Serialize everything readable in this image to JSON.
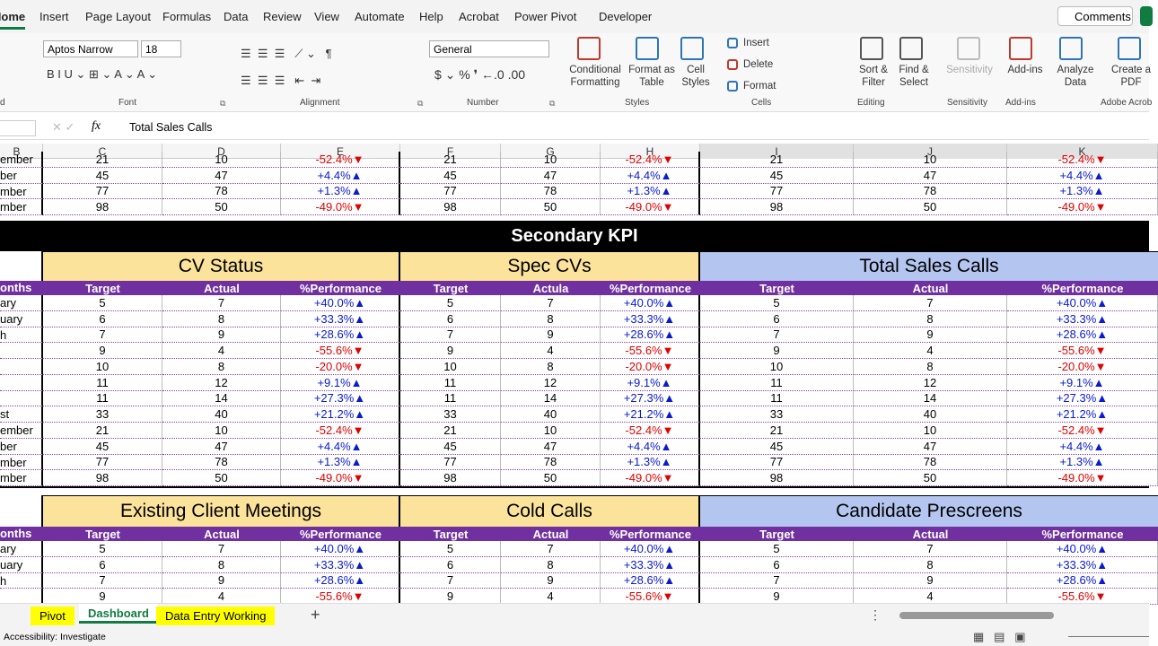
{
  "menu": {
    "tabs": [
      "Home",
      "Insert",
      "Page Layout",
      "Formulas",
      "Data",
      "Review",
      "View",
      "Automate",
      "Help",
      "Acrobat",
      "Power Pivot",
      "Developer"
    ],
    "comments": "Comments"
  },
  "ribbon": {
    "font_name": "Aptos Narrow",
    "font_size": "18",
    "number_format": "General",
    "buttons": [
      "Conditional Formatting",
      "Format as Table",
      "Cell Styles",
      "Insert",
      "Delete",
      "Format",
      "Sort & Filter",
      "Find & Select",
      "Sensitivity",
      "Add-ins",
      "Analyze Data",
      "Create a PDF"
    ],
    "groups": [
      "d",
      "Font",
      "Alignment",
      "Number",
      "Styles",
      "Cells",
      "Editing",
      "Sensitivity",
      "Add-ins",
      "Adobe Acrob"
    ]
  },
  "formula_bar": {
    "fx": "fx",
    "content": "Total Sales Calls"
  },
  "columns": [
    "B",
    "C",
    "D",
    "E",
    "F",
    "G",
    "H",
    "I",
    "J",
    "K"
  ],
  "top_rows": [
    {
      "month": "ember",
      "cells": [
        "21",
        "10",
        "-52.4%▼",
        "21",
        "10",
        "-52.4%▼",
        "21",
        "10",
        "-52.4%▼"
      ]
    },
    {
      "month": "ber",
      "cells": [
        "45",
        "47",
        "+4.4%▲",
        "45",
        "47",
        "+4.4%▲",
        "45",
        "47",
        "+4.4%▲"
      ]
    },
    {
      "month": "mber",
      "cells": [
        "77",
        "78",
        "+1.3%▲",
        "77",
        "78",
        "+1.3%▲",
        "77",
        "78",
        "+1.3%▲"
      ]
    },
    {
      "month": "mber",
      "cells": [
        "98",
        "50",
        "-49.0%▼",
        "98",
        "50",
        "-49.0%▼",
        "98",
        "50",
        "-49.0%▼"
      ]
    }
  ],
  "section_title": "Secondary KPI",
  "blocks": [
    {
      "headings": [
        "CV Status",
        "Spec CVs",
        "Total Sales Calls"
      ],
      "month_header": "onths",
      "subheaders": [
        "Target",
        "Actual",
        "%Performance",
        "Target",
        "Actula",
        "%Performance",
        "Target",
        "Actual",
        "%Performance"
      ],
      "rows": [
        {
          "month": "ary",
          "cells": [
            "5",
            "7",
            "+40.0%▲",
            "5",
            "7",
            "+40.0%▲",
            "5",
            "7",
            "+40.0%▲"
          ]
        },
        {
          "month": "uary",
          "cells": [
            "6",
            "8",
            "+33.3%▲",
            "6",
            "8",
            "+33.3%▲",
            "6",
            "8",
            "+33.3%▲"
          ]
        },
        {
          "month": "h",
          "cells": [
            "7",
            "9",
            "+28.6%▲",
            "7",
            "9",
            "+28.6%▲",
            "7",
            "9",
            "+28.6%▲"
          ]
        },
        {
          "month": null,
          "cells": [
            "9",
            "4",
            "-55.6%▼",
            "9",
            "4",
            "-55.6%▼",
            "9",
            "4",
            "-55.6%▼"
          ]
        },
        {
          "month": null,
          "cells": [
            "10",
            "8",
            "-20.0%▼",
            "10",
            "8",
            "-20.0%▼",
            "10",
            "8",
            "-20.0%▼"
          ]
        },
        {
          "month": null,
          "cells": [
            "11",
            "12",
            "+9.1%▲",
            "11",
            "12",
            "+9.1%▲",
            "11",
            "12",
            "+9.1%▲"
          ]
        },
        {
          "month": null,
          "cells": [
            "11",
            "14",
            "+27.3%▲",
            "11",
            "14",
            "+27.3%▲",
            "11",
            "14",
            "+27.3%▲"
          ]
        },
        {
          "month": "st",
          "cells": [
            "33",
            "40",
            "+21.2%▲",
            "33",
            "40",
            "+21.2%▲",
            "33",
            "40",
            "+21.2%▲"
          ]
        },
        {
          "month": "ember",
          "cells": [
            "21",
            "10",
            "-52.4%▼",
            "21",
            "10",
            "-52.4%▼",
            "21",
            "10",
            "-52.4%▼"
          ]
        },
        {
          "month": "ber",
          "cells": [
            "45",
            "47",
            "+4.4%▲",
            "45",
            "47",
            "+4.4%▲",
            "45",
            "47",
            "+4.4%▲"
          ]
        },
        {
          "month": "mber",
          "cells": [
            "77",
            "78",
            "+1.3%▲",
            "77",
            "78",
            "+1.3%▲",
            "77",
            "78",
            "+1.3%▲"
          ]
        },
        {
          "month": "mber",
          "cells": [
            "98",
            "50",
            "-49.0%▼",
            "98",
            "50",
            "-49.0%▼",
            "98",
            "50",
            "-49.0%▼"
          ]
        }
      ]
    },
    {
      "headings": [
        "Existing Client Meetings",
        "Cold Calls",
        "Candidate Prescreens"
      ],
      "month_header": "onths",
      "subheaders": [
        "Target",
        "Actual",
        "%Performance",
        "Target",
        "Actual",
        "%Performance",
        "Target",
        "Actual",
        "%Performance"
      ],
      "rows": [
        {
          "month": "ary",
          "cells": [
            "5",
            "7",
            "+40.0%▲",
            "5",
            "7",
            "+40.0%▲",
            "5",
            "7",
            "+40.0%▲"
          ]
        },
        {
          "month": "uary",
          "cells": [
            "6",
            "8",
            "+33.3%▲",
            "6",
            "8",
            "+33.3%▲",
            "6",
            "8",
            "+33.3%▲"
          ]
        },
        {
          "month": "h",
          "cells": [
            "7",
            "9",
            "+28.6%▲",
            "7",
            "9",
            "+28.6%▲",
            "7",
            "9",
            "+28.6%▲"
          ]
        },
        {
          "month": null,
          "cells": [
            "9",
            "4",
            "-55.6%▼",
            "9",
            "4",
            "-55.6%▼",
            "9",
            "4",
            "-55.6%▼"
          ]
        }
      ]
    }
  ],
  "sheet_tabs": [
    "Pivot",
    "Dashboard",
    "Data Entry Working"
  ],
  "active_tab": 1,
  "status": "Accessibility: Investigate"
}
